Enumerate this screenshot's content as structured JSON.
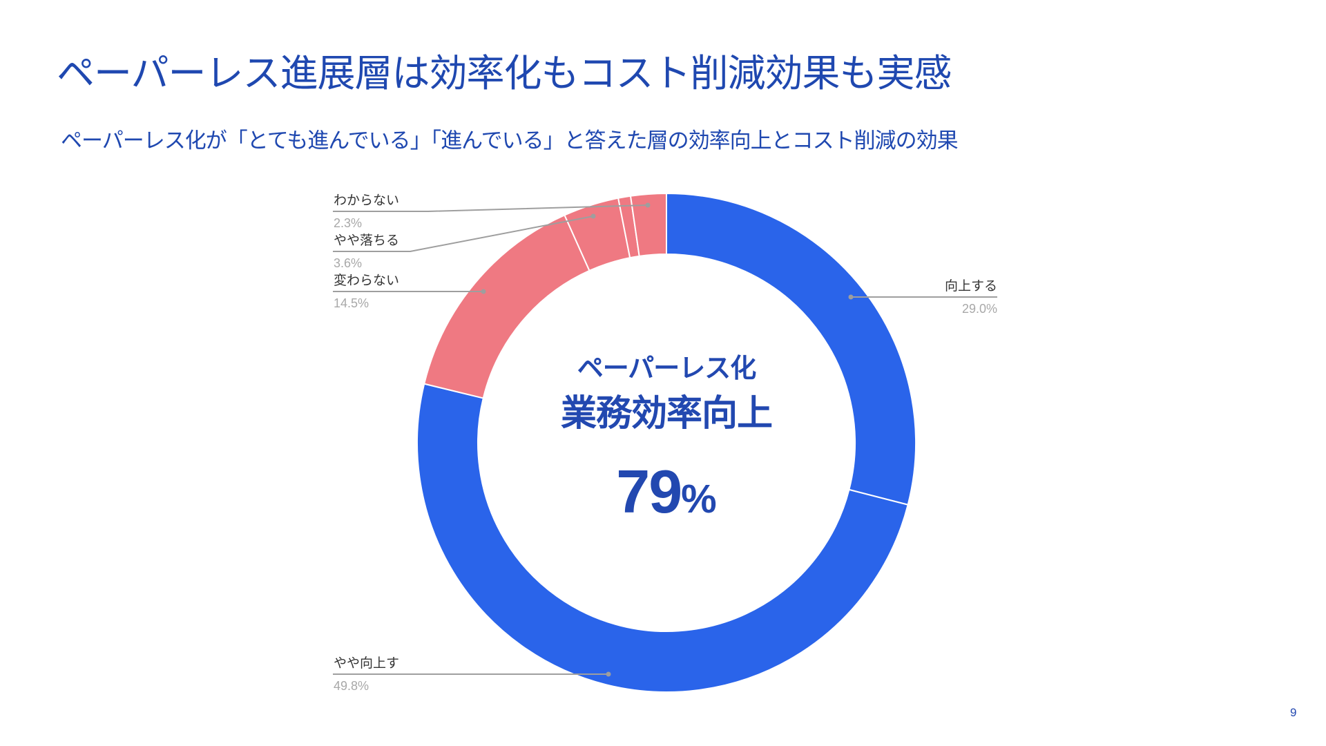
{
  "slide": {
    "title": "ペーパーレス進展層は効率化もコスト削減効果も実感",
    "subtitle": "ペーパーレス化が「とても進んでいる」「進んでいる」と答えた層の効率向上とコスト削減の効果",
    "page_number": "9"
  },
  "center_label": {
    "line1": "ペーパーレス化",
    "line2": "業務効率向上",
    "value": "79",
    "unit": "%"
  },
  "labels": {
    "s0": {
      "name": "向上する",
      "pct": "29.0%"
    },
    "s1": {
      "name": "やや向上す",
      "pct": "49.8%"
    },
    "s2": {
      "name": "変わらない",
      "pct": "14.5%"
    },
    "s3": {
      "name": "やや落ちる",
      "pct": "3.6%"
    },
    "s5": {
      "name": "わからない",
      "pct": "2.3%"
    }
  },
  "colors": {
    "positive": "#2a64ea",
    "negative": "#ef7982",
    "title": "#1f48b0",
    "label": "#333333",
    "percent": "#a8a8a8",
    "leader": "#9e9e9e"
  },
  "chart_data": {
    "type": "pie",
    "subtype": "donut",
    "title": "ペーパーレス化が「とても進んでいる」「進んでいる」と答えた層の効率向上とコスト削減の効果",
    "center_text": "ペーパーレス化 業務効率向上 79%",
    "start_angle_deg": 0,
    "direction": "clockwise",
    "categories": [
      "向上する",
      "やや向上す",
      "変わらない",
      "やや落ちる",
      "(unlabeled)",
      "わからない"
    ],
    "values": [
      29.0,
      49.8,
      14.5,
      3.6,
      0.8,
      2.3
    ],
    "slice_colors": [
      "#2a64ea",
      "#2a64ea",
      "#ef7982",
      "#ef7982",
      "#ef7982",
      "#ef7982"
    ],
    "legend": "none (leader-line labels)",
    "unit": "%"
  }
}
